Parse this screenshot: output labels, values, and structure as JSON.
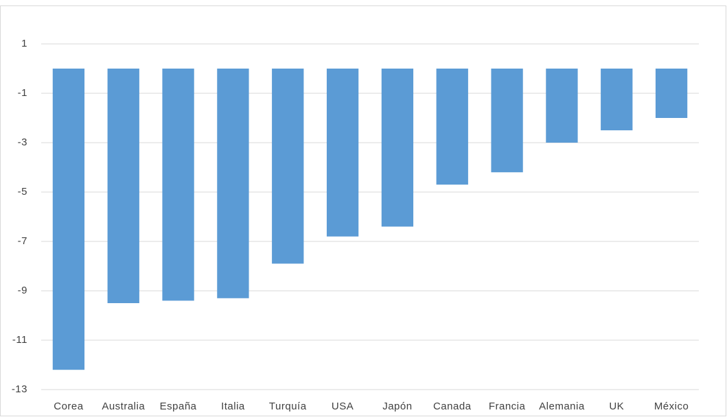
{
  "chart_data": {
    "type": "bar",
    "categories": [
      "Corea",
      "Australia",
      "España",
      "Italia",
      "Turquía",
      "USA",
      "Japón",
      "Canada",
      "Francia",
      "Alemania",
      "UK",
      "México"
    ],
    "values": [
      -12.2,
      -9.5,
      -9.4,
      -9.3,
      -7.9,
      -6.8,
      -6.4,
      -4.7,
      -4.2,
      -3.0,
      -2.5,
      -2.0
    ],
    "color": "#5b9bd5",
    "ylim": [
      -13,
      1
    ],
    "yticks": [
      1,
      -1,
      -3,
      -5,
      -7,
      -9,
      -11,
      -13
    ],
    "grid": true
  }
}
